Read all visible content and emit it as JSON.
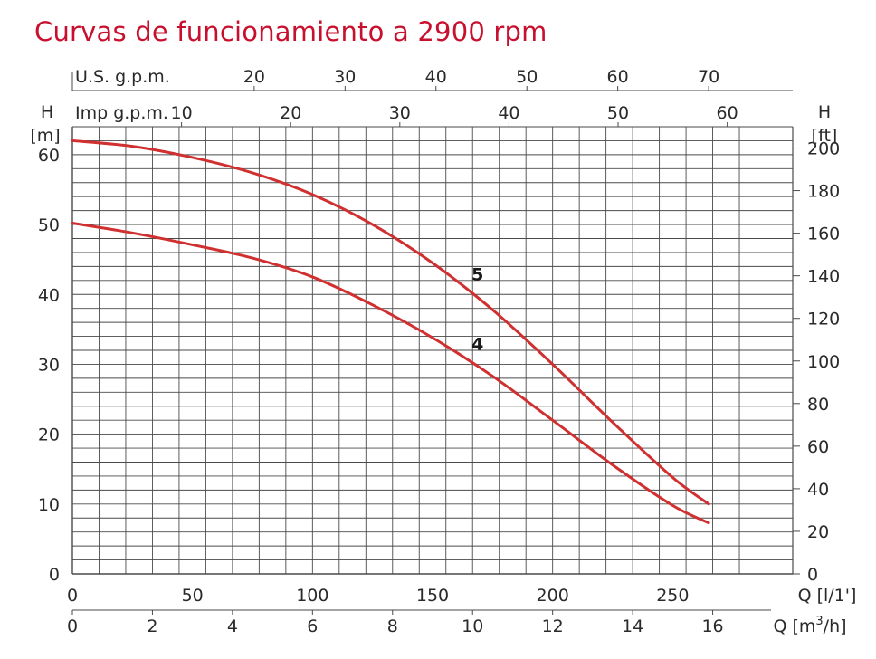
{
  "title": "Curvas de funcionamiento a 2900 rpm",
  "chart_data": {
    "type": "line",
    "title": "Curvas de funcionamiento a 2900 rpm",
    "grid": true,
    "colors": {
      "curve": "#d03030",
      "grid": "#4a4a4a",
      "title": "#c8102e"
    },
    "axes": {
      "x_main": {
        "label": "Q [l/1']",
        "range": [
          0,
          300
        ],
        "ticks": [
          0,
          50,
          100,
          150,
          200,
          250
        ]
      },
      "x_m3h": {
        "label_prefix": "Q [m",
        "label_sup": "3",
        "label_suffix": "/h]",
        "range": [
          0,
          18
        ],
        "ticks": [
          0,
          2,
          4,
          6,
          8,
          10,
          12,
          14,
          16
        ]
      },
      "x_usgpm": {
        "label": "U.S. g.p.m.",
        "range": [
          0,
          79.25
        ],
        "ticks": [
          20,
          30,
          40,
          50,
          60,
          70
        ]
      },
      "x_impgpm": {
        "label": "Imp g.p.m.",
        "range": [
          0,
          66
        ],
        "ticks": [
          10,
          20,
          30,
          40,
          50,
          60
        ]
      },
      "y_left": {
        "label": "H",
        "unit": "[m]",
        "range": [
          0,
          64
        ],
        "ticks": [
          0,
          10,
          20,
          30,
          40,
          50,
          60
        ]
      },
      "y_right": {
        "label": "H",
        "unit": "[ft]",
        "range": [
          0,
          210
        ],
        "ticks": [
          0,
          20,
          40,
          60,
          80,
          100,
          120,
          140,
          160,
          180,
          200
        ]
      }
    },
    "series": [
      {
        "name": "5",
        "x_unit": "l/min",
        "y_unit": "m",
        "points": [
          [
            0,
            62
          ],
          [
            25,
            61.2
          ],
          [
            50,
            59.6
          ],
          [
            75,
            57.4
          ],
          [
            100,
            54.3
          ],
          [
            125,
            50
          ],
          [
            150,
            44.5
          ],
          [
            175,
            37.8
          ],
          [
            200,
            30
          ],
          [
            225,
            21.7
          ],
          [
            250,
            13.8
          ],
          [
            265,
            10
          ]
        ]
      },
      {
        "name": "4",
        "x_unit": "l/min",
        "y_unit": "m",
        "points": [
          [
            0,
            50.2
          ],
          [
            25,
            48.8
          ],
          [
            50,
            47.1
          ],
          [
            75,
            45.2
          ],
          [
            100,
            42.5
          ],
          [
            125,
            38.5
          ],
          [
            150,
            33.8
          ],
          [
            175,
            28.3
          ],
          [
            200,
            22
          ],
          [
            225,
            15.6
          ],
          [
            250,
            9.8
          ],
          [
            265,
            7.3
          ]
        ]
      }
    ]
  }
}
